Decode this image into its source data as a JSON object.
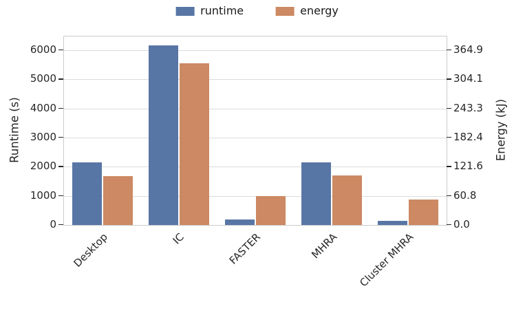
{
  "chart_data": {
    "type": "bar",
    "categories": [
      "Desktop",
      "IC",
      "FASTER",
      "MHRA",
      "Cluster MHRA"
    ],
    "series": [
      {
        "name": "runtime",
        "axis": "left",
        "unit": "s",
        "color": "#5876A5",
        "values": [
          2160,
          6160,
          195,
          2145,
          140
        ]
      },
      {
        "name": "energy",
        "axis": "right",
        "unit": "kJ",
        "color": "#CC8963",
        "values": [
          102,
          337,
          61,
          103,
          53
        ]
      }
    ],
    "left_axis": {
      "label": "Runtime (s)",
      "ticks": [
        0,
        1000,
        2000,
        3000,
        4000,
        5000,
        6000
      ],
      "max": 6470
    },
    "right_axis": {
      "label": "Energy (kJ)",
      "ticks": [
        "0.0",
        "60.8",
        "121.6",
        "182.4",
        "243.3",
        "304.1",
        "364.9"
      ],
      "max": 393.5
    },
    "legend": {
      "position": "top-center",
      "entries": [
        "runtime",
        "energy"
      ]
    },
    "grid": "horizontal",
    "colors": {
      "grid": "#dcdcdc",
      "spine": "#cbcbcb",
      "text": "#262626"
    }
  }
}
